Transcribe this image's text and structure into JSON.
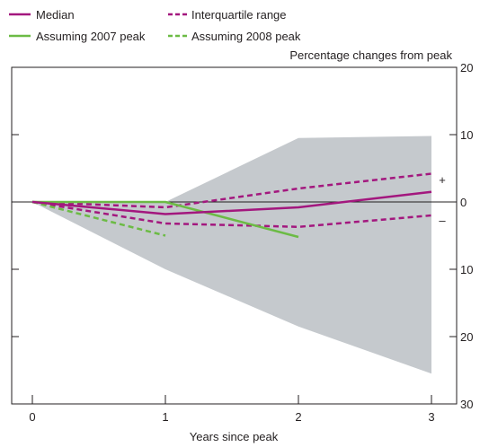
{
  "chart_data": {
    "type": "line",
    "title": "",
    "xlabel": "Years since peak",
    "ylabel": "Percentage changes from peak",
    "x": [
      0,
      1,
      2,
      3
    ],
    "xlim": [
      -0.15,
      3.0
    ],
    "ylim": [
      -30,
      20
    ],
    "x_ticks": [
      "0",
      "1",
      "2",
      "3"
    ],
    "y_ticks": [
      {
        "value": 20,
        "label": "20"
      },
      {
        "value": 10,
        "label": "10"
      },
      {
        "value": 0,
        "label": "0"
      },
      {
        "value": -10,
        "label": "10"
      },
      {
        "value": -20,
        "label": "20"
      },
      {
        "value": -30,
        "label": "30"
      }
    ],
    "sign_labels": {
      "plus": "+",
      "minus": "–"
    },
    "grid": false,
    "legend_position": "top-left",
    "range_band": {
      "x": [
        0,
        1,
        2,
        3
      ],
      "upper": [
        0,
        0,
        9.5,
        9.8
      ],
      "lower": [
        0,
        -10,
        -18.5,
        -25.5
      ]
    },
    "series": [
      {
        "name": "Median",
        "color": "#a3177e",
        "style": "solid",
        "x": [
          0,
          1,
          2,
          3
        ],
        "values": [
          0,
          -1.8,
          -0.8,
          1.5
        ]
      },
      {
        "name": "Interquartile range",
        "color": "#a3177e",
        "style": "dashed",
        "x": [
          0,
          1,
          2,
          3
        ],
        "values": [
          0,
          -0.8,
          2.0,
          4.2
        ]
      },
      {
        "name": "Interquartile range",
        "color": "#a3177e",
        "style": "dashed",
        "x": [
          0,
          1,
          2,
          3
        ],
        "values": [
          0,
          -3.2,
          -3.7,
          -2.0
        ]
      },
      {
        "name": "Assuming 2007 peak",
        "color": "#6cbb45",
        "style": "solid",
        "x": [
          0,
          1,
          2
        ],
        "values": [
          0,
          0,
          -5.2
        ]
      },
      {
        "name": "Assuming 2008 peak",
        "color": "#6cbb45",
        "style": "dashed",
        "x": [
          0,
          1
        ],
        "values": [
          0,
          -5.0
        ]
      }
    ],
    "colors": {
      "band": "#c5c9cd",
      "axis": "#231f20",
      "zero_line": "#231f20"
    }
  }
}
